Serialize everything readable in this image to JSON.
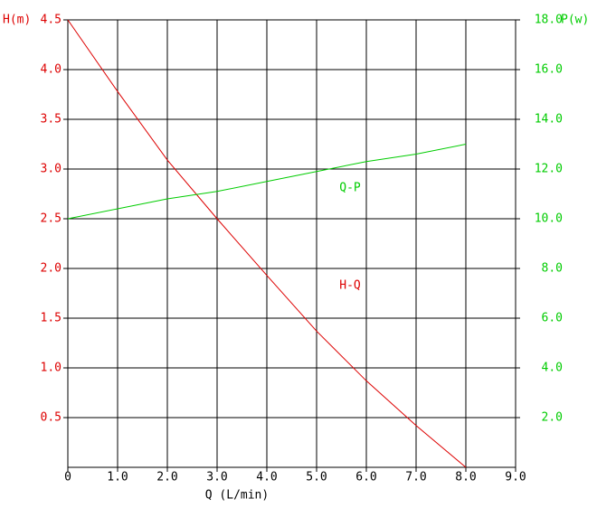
{
  "chart_data": {
    "type": "line",
    "x_label": "Q (L/min)",
    "y_label": "H(m)",
    "y2_label": "P(w)",
    "x": [
      0,
      1,
      2,
      3,
      4,
      5,
      6,
      7,
      8
    ],
    "series": [
      {
        "name": "H-Q",
        "color": "#dd0000",
        "values": [
          4.5,
          3.78,
          3.09,
          2.5,
          1.93,
          1.37,
          0.87,
          0.42,
          0
        ]
      },
      {
        "name": "Q-P",
        "color": "#00cc00",
        "axis": "y2",
        "values": [
          10,
          10.4,
          10.8,
          11.1,
          11.5,
          11.9,
          12.3,
          12.6,
          13
        ]
      }
    ],
    "xlim": [
      0,
      9
    ],
    "xticks": [
      0,
      {
        "value": 1,
        "label": "1.0"
      },
      {
        "value": 2,
        "label": "2.0"
      },
      {
        "value": 3,
        "label": "3.0"
      },
      {
        "value": 4,
        "label": "4.0"
      },
      {
        "value": 5,
        "label": "5.0"
      },
      {
        "value": 6,
        "label": "6.0"
      },
      {
        "value": 7,
        "label": "7.0"
      },
      {
        "value": 8,
        "label": "8.0"
      },
      {
        "value": 9,
        "label": "9.0"
      }
    ],
    "ylim": [
      0,
      4.5
    ],
    "yticks": [
      0.5,
      {
        "value": 1,
        "label": "1.0"
      },
      1.5,
      {
        "value": 2,
        "label": "2.0"
      },
      2.5,
      {
        "value": 3,
        "label": "3.0"
      },
      3.5,
      {
        "value": 4,
        "label": "4.0"
      },
      4.5
    ],
    "y2lim": [
      0,
      18
    ],
    "y2ticks": [
      {
        "value": 2,
        "label": "2.0"
      },
      {
        "value": 4,
        "label": "4.0"
      },
      {
        "value": 6,
        "label": "6.0"
      },
      {
        "value": 8,
        "label": "8.0"
      },
      {
        "value": 10,
        "label": "10.0"
      },
      {
        "value": 12,
        "label": "12.0"
      },
      {
        "value": 14,
        "label": "14.0"
      },
      {
        "value": 16,
        "label": "16.0"
      },
      {
        "value": 18,
        "label": "18.0"
      }
    ],
    "grid": true,
    "y_color": "#dd0000",
    "y2_color": "#00cc00"
  }
}
